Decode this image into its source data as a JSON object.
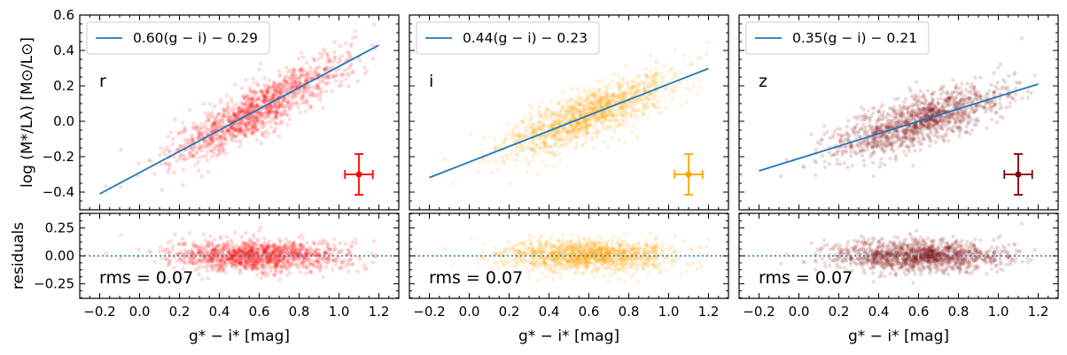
{
  "chart_data": [
    {
      "type": "scatter",
      "band": "r",
      "color": "#ff0000",
      "fit_label": "0.60(g − i) − 0.29",
      "fit": {
        "slope": 0.6,
        "intercept": -0.29,
        "x_range": [
          -0.2,
          1.2
        ]
      },
      "point_cloud": {
        "x_center": 0.6,
        "x_sd": 0.22,
        "x_range": [
          -0.2,
          1.2
        ],
        "scatter_sd": 0.07
      },
      "error_bar": {
        "x": 1.1,
        "y": -0.3,
        "xerr": 0.07,
        "yerr": 0.115
      },
      "residuals": {
        "rms_label": "rms = 0.07",
        "zero_line": 0
      }
    },
    {
      "type": "scatter",
      "band": "i",
      "color": "#ffa500",
      "fit_label": "0.44(g − i) − 0.23",
      "fit": {
        "slope": 0.44,
        "intercept": -0.23,
        "x_range": [
          -0.2,
          1.2
        ]
      },
      "point_cloud": {
        "x_center": 0.6,
        "x_sd": 0.22,
        "x_range": [
          -0.2,
          1.2
        ],
        "scatter_sd": 0.07
      },
      "error_bar": {
        "x": 1.1,
        "y": -0.3,
        "xerr": 0.07,
        "yerr": 0.115
      },
      "residuals": {
        "rms_label": "rms = 0.07",
        "zero_line": 0
      }
    },
    {
      "type": "scatter",
      "band": "z",
      "color": "#800000",
      "fit_label": "0.35(g − i) − 0.21",
      "fit": {
        "slope": 0.35,
        "intercept": -0.21,
        "x_range": [
          -0.2,
          1.2
        ]
      },
      "point_cloud": {
        "x_center": 0.6,
        "x_sd": 0.22,
        "x_range": [
          -0.2,
          1.2
        ],
        "scatter_sd": 0.07
      },
      "error_bar": {
        "x": 1.1,
        "y": -0.3,
        "xerr": 0.07,
        "yerr": 0.115
      },
      "residuals": {
        "rms_label": "rms = 0.07",
        "zero_line": 0
      }
    }
  ],
  "axes": {
    "xlabel": "g* − i* [mag]",
    "xlim": [
      -0.3,
      1.3
    ],
    "xticks": [
      -0.2,
      0.0,
      0.2,
      0.4,
      0.6,
      0.8,
      1.0,
      1.2
    ],
    "xtick_labels": [
      "−0.2",
      "0.0",
      "0.2",
      "0.4",
      "0.6",
      "0.8",
      "1.0",
      "1.2"
    ],
    "top_ylabel": "log (M*/Lλ)  [M⊙/L⊙]",
    "top_ylim": [
      -0.5,
      0.6
    ],
    "top_yticks": [
      -0.4,
      -0.2,
      0.0,
      0.2,
      0.4,
      0.6
    ],
    "top_ytick_labels": [
      "−0.4",
      "−0.2",
      "0.0",
      "0.2",
      "0.4",
      "0.6"
    ],
    "bottom_ylabel": "residuals",
    "bottom_ylim": [
      -0.38,
      0.38
    ],
    "bottom_yticks": [
      -0.25,
      0.0,
      0.25
    ],
    "bottom_ytick_labels": [
      "−0.25",
      "0.00",
      "0.25"
    ],
    "fit_line_color": "#1f77b4",
    "zero_line_color": "#1f77b4"
  }
}
